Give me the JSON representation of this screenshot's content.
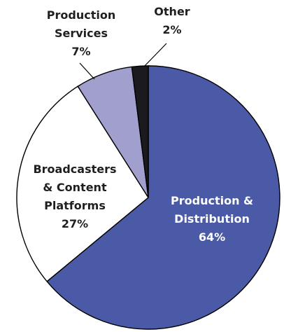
{
  "chart_data": {
    "type": "pie",
    "slices": [
      {
        "label": "Production & Distribution",
        "value": 64,
        "color": "#4a5aa6"
      },
      {
        "label": "Broadcasters & Content Platforms",
        "value": 27,
        "color": "#ffffff"
      },
      {
        "label": "Production Services",
        "value": 7,
        "color": "#a09fce"
      },
      {
        "label": "Other",
        "value": 2,
        "color": "#1b1b1f"
      }
    ],
    "labels": {
      "production_distribution": {
        "lines": [
          "Production &",
          "Distribution"
        ],
        "pct": "64%"
      },
      "broadcasters": {
        "lines": [
          "Broadcasters",
          "& Content",
          "Platforms"
        ],
        "pct": "27%"
      },
      "production_services": {
        "lines": [
          "Production",
          "Services"
        ],
        "pct": "7%"
      },
      "other": {
        "lines": [
          "Other"
        ],
        "pct": "2%"
      }
    }
  }
}
